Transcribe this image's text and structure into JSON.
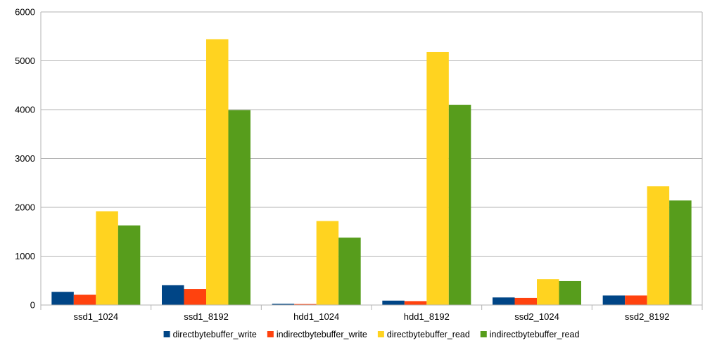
{
  "chart_data": {
    "type": "bar",
    "categories": [
      "ssd1_1024",
      "ssd1_8192",
      "hdd1_1024",
      "hdd1_8192",
      "ssd2_1024",
      "ssd2_8192"
    ],
    "series": [
      {
        "name": "directbytebuffer_write",
        "color": "#004586",
        "values": [
          270,
          405,
          25,
          90,
          155,
          195
        ]
      },
      {
        "name": "indirectbytebuffer_write",
        "color": "#ff420e",
        "values": [
          210,
          330,
          20,
          80,
          145,
          195
        ]
      },
      {
        "name": "directbytebuffer_read",
        "color": "#ffd320",
        "values": [
          1920,
          5440,
          1720,
          5180,
          530,
          2430
        ]
      },
      {
        "name": "indirectbytebuffer_read",
        "color": "#579d1c",
        "values": [
          1630,
          3990,
          1380,
          4100,
          490,
          2140
        ]
      }
    ],
    "ylim": [
      0,
      6000
    ],
    "yticks": [
      0,
      1000,
      2000,
      3000,
      4000,
      5000,
      6000
    ],
    "ytick_labels": [
      "0",
      "1000",
      "2000",
      "3000",
      "4000",
      "5000",
      "6000"
    ],
    "grid": true,
    "legend_position": "bottom"
  }
}
